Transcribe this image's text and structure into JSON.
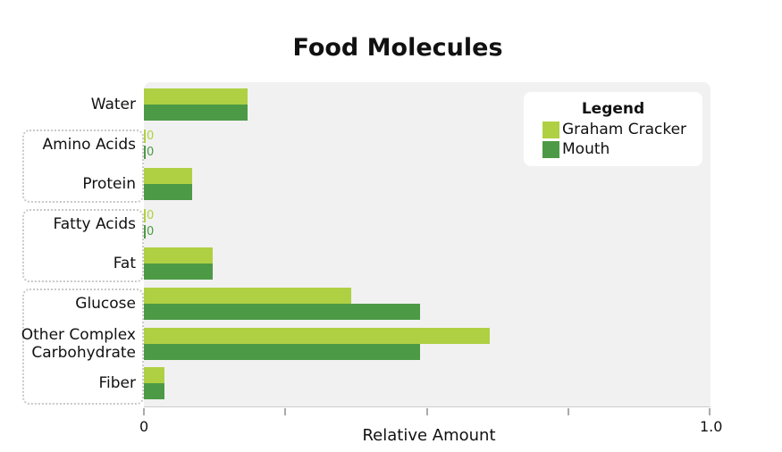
{
  "chart_data": {
    "type": "bar",
    "orientation": "horizontal",
    "title": "Food Molecules",
    "xlabel": "Relative Amount",
    "ylabel": "",
    "xlim": [
      0,
      1.0
    ],
    "x_tick_labels": [
      "0",
      "1.0"
    ],
    "categories": [
      "Water",
      "Amino Acids",
      "Protein",
      "Fatty Acids",
      "Fat",
      "Glucose",
      "Other Complex Carbohydrate",
      "Fiber"
    ],
    "category_lines": [
      [
        "Water"
      ],
      [
        "Amino Acids"
      ],
      [
        "Protein"
      ],
      [
        "Fatty Acids"
      ],
      [
        "Fat"
      ],
      [
        "Glucose"
      ],
      [
        "Other Complex",
        "Carbohydrate"
      ],
      [
        "Fiber"
      ]
    ],
    "series": [
      {
        "name": "Graham Cracker",
        "color": "#afd043",
        "values": [
          0.183,
          0,
          0.085,
          0,
          0.122,
          0.367,
          0.611,
          0.036
        ]
      },
      {
        "name": "Mouth",
        "color": "#4c9a45",
        "values": [
          0.183,
          0,
          0.085,
          0,
          0.122,
          0.488,
          0.488,
          0.036
        ]
      }
    ],
    "zero_label": "0",
    "legend": {
      "title": "Legend",
      "placement": "top-right"
    },
    "groups": [
      [
        "Amino Acids",
        "Protein"
      ],
      [
        "Fatty Acids",
        "Fat"
      ],
      [
        "Glucose",
        "Other Complex Carbohydrate",
        "Fiber"
      ]
    ]
  }
}
